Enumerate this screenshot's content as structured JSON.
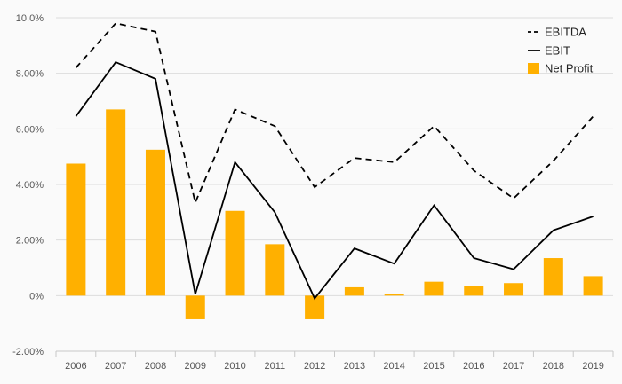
{
  "chart_data": {
    "type": "bar",
    "categories": [
      "2006",
      "2007",
      "2008",
      "2009",
      "2010",
      "2011",
      "2012",
      "2013",
      "2014",
      "2015",
      "2016",
      "2017",
      "2018",
      "2019"
    ],
    "series": [
      {
        "name": "EBITDA",
        "type": "line",
        "style": "dashed",
        "color": "#000000",
        "values": [
          8.2,
          9.8,
          9.5,
          3.35,
          6.7,
          6.1,
          3.9,
          4.95,
          4.8,
          6.1,
          4.5,
          3.5,
          4.85,
          6.45
        ]
      },
      {
        "name": "EBIT",
        "type": "line",
        "style": "solid",
        "color": "#000000",
        "values": [
          6.45,
          8.4,
          7.8,
          0.05,
          4.8,
          3.0,
          -0.1,
          1.7,
          1.15,
          3.25,
          1.35,
          0.95,
          2.35,
          2.85
        ]
      },
      {
        "name": "Net Profit",
        "type": "bar",
        "color": "#FFB000",
        "values": [
          4.75,
          6.7,
          5.25,
          -0.85,
          3.05,
          1.85,
          -0.85,
          0.3,
          0.05,
          0.5,
          0.35,
          0.45,
          1.35,
          0.7
        ]
      }
    ],
    "y_ticks": [
      "10.0%",
      "8.00%",
      "6.00%",
      "4.00%",
      "2.00%",
      "0%",
      "-2.00%"
    ],
    "y_tick_values": [
      10,
      8,
      6,
      4,
      2,
      0,
      -2
    ],
    "ylim": [
      -2,
      10
    ],
    "grid": true,
    "legend_position": "top-right"
  }
}
